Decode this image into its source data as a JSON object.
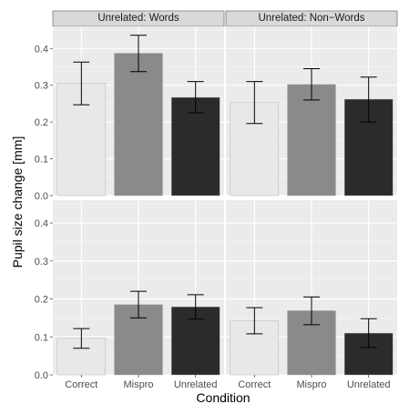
{
  "chart_data": {
    "type": "bar",
    "xlabel": "Condition",
    "ylabel": "Pupil size change [mm]",
    "ylim": [
      0,
      0.46
    ],
    "categories": [
      "Correct",
      "Mispro",
      "Unrelated"
    ],
    "bar_colors": [
      "#e8e8e8",
      "#8a8a8a",
      "#2b2b2b"
    ],
    "panel_background": "#ebebeb",
    "strip_background": "#d9d9d9",
    "grid": true,
    "y_ticks": [
      "0.0",
      "0.1",
      "0.2",
      "0.3",
      "0.4"
    ],
    "columns": [
      "Unrelated: Words",
      "Unrelated: Non−Words"
    ],
    "panels": [
      {
        "row": 0,
        "col": 0,
        "values": [
          0.305,
          0.387,
          0.267
        ],
        "error_low": [
          0.247,
          0.337,
          0.225
        ],
        "error_high": [
          0.363,
          0.436,
          0.31
        ]
      },
      {
        "row": 0,
        "col": 1,
        "values": [
          0.253,
          0.302,
          0.262
        ],
        "error_low": [
          0.196,
          0.26,
          0.2
        ],
        "error_high": [
          0.31,
          0.345,
          0.322
        ]
      },
      {
        "row": 1,
        "col": 0,
        "values": [
          0.097,
          0.185,
          0.179
        ],
        "error_low": [
          0.07,
          0.15,
          0.147
        ],
        "error_high": [
          0.122,
          0.22,
          0.211
        ]
      },
      {
        "row": 1,
        "col": 1,
        "values": [
          0.142,
          0.169,
          0.11
        ],
        "error_low": [
          0.108,
          0.132,
          0.072
        ],
        "error_high": [
          0.177,
          0.205,
          0.148
        ]
      }
    ]
  }
}
